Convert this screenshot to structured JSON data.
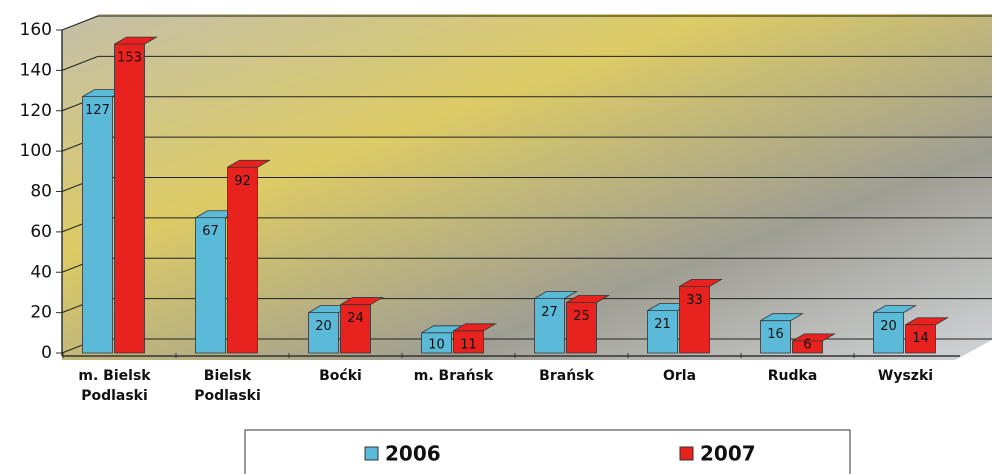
{
  "chart_data": {
    "type": "bar",
    "categories": [
      "m. Bielsk Podlaski",
      "Bielsk Podlaski",
      "Boćki",
      "m. Brańsk",
      "Brańsk",
      "Orla",
      "Rudka",
      "Wyszki"
    ],
    "series": [
      {
        "name": "2006",
        "color": "#5bbad8",
        "values": [
          127,
          67,
          20,
          10,
          27,
          21,
          16,
          20
        ]
      },
      {
        "name": "2007",
        "color": "#e8231f",
        "values": [
          153,
          92,
          24,
          11,
          25,
          33,
          6,
          14
        ]
      }
    ],
    "ylim": [
      0,
      160
    ],
    "yticks": [
      0,
      20,
      40,
      60,
      80,
      100,
      120,
      140,
      160
    ],
    "grid": true
  }
}
